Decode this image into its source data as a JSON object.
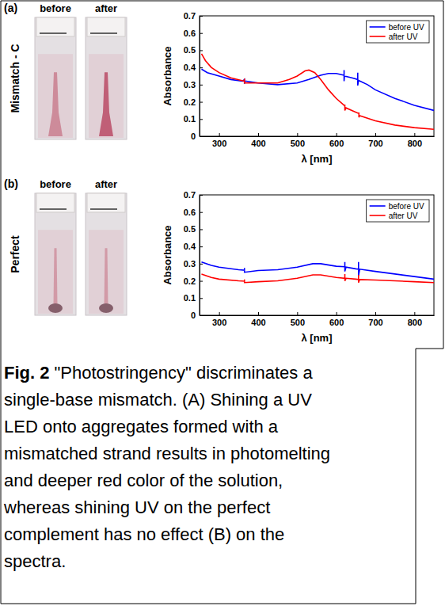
{
  "figure": {
    "panels": [
      {
        "label": "(a)",
        "photo_labels": [
          "before",
          "after"
        ],
        "sample": "Mismatch - C"
      },
      {
        "label": "(b)",
        "photo_labels": [
          "before",
          "after"
        ],
        "sample": "Perfect"
      }
    ],
    "caption": {
      "label": "Fig. 2",
      "lines": [
        "\"Photostringency\" discriminates a",
        "single-base mismatch. (A) Shining a UV",
        "LED onto aggregates formed with a",
        "mismatched strand results in photomelting",
        "and deeper red color of the solution,",
        "whereas shining UV on the perfect",
        "complement has no effect (B) on the",
        "spectra."
      ]
    }
  },
  "chart_data": [
    {
      "type": "line",
      "x_label": "λ [nm]",
      "y_label": "Absorbance",
      "xlim": [
        250,
        850
      ],
      "ylim": [
        0,
        0.7
      ],
      "xticks": [
        300,
        400,
        500,
        600,
        700,
        800
      ],
      "yticks": [
        0,
        0.1,
        0.2,
        0.3,
        0.4,
        0.5,
        0.6,
        0.7
      ],
      "legend": "upper right",
      "series": [
        {
          "name": "before UV",
          "color": "#0000ff",
          "x": [
            255,
            270,
            300,
            330,
            360,
            365,
            365,
            365,
            370,
            400,
            450,
            500,
            530,
            560,
            580,
            600,
            620,
            620,
            620,
            621,
            640,
            655,
            655,
            655,
            657,
            680,
            700,
            750,
            800,
            850
          ],
          "values": [
            0.39,
            0.37,
            0.35,
            0.33,
            0.32,
            0.33,
            0.305,
            0.32,
            0.32,
            0.31,
            0.3,
            0.31,
            0.33,
            0.355,
            0.365,
            0.365,
            0.355,
            0.385,
            0.32,
            0.35,
            0.34,
            0.33,
            0.37,
            0.295,
            0.325,
            0.3,
            0.27,
            0.22,
            0.18,
            0.15
          ]
        },
        {
          "name": "after UV",
          "color": "#ff0000",
          "x": [
            255,
            265,
            280,
            300,
            330,
            365,
            365,
            365,
            400,
            450,
            480,
            500,
            520,
            530,
            545,
            560,
            580,
            600,
            620,
            622,
            622,
            625,
            640,
            655,
            658,
            658,
            660,
            700,
            750,
            800,
            850
          ],
          "values": [
            0.48,
            0.44,
            0.4,
            0.37,
            0.34,
            0.32,
            0.335,
            0.31,
            0.31,
            0.31,
            0.33,
            0.35,
            0.38,
            0.385,
            0.37,
            0.33,
            0.27,
            0.22,
            0.18,
            0.18,
            0.15,
            0.165,
            0.15,
            0.135,
            0.135,
            0.11,
            0.12,
            0.09,
            0.065,
            0.05,
            0.04
          ]
        }
      ]
    },
    {
      "type": "line",
      "x_label": "λ [nm]",
      "y_label": "Absorbance",
      "xlim": [
        250,
        850
      ],
      "ylim": [
        0,
        0.7
      ],
      "xticks": [
        300,
        400,
        500,
        600,
        700,
        800
      ],
      "yticks": [
        0,
        0.1,
        0.2,
        0.3,
        0.4,
        0.5,
        0.6,
        0.7
      ],
      "legend": "upper right",
      "series": [
        {
          "name": "before UV",
          "color": "#0000ff",
          "x": [
            255,
            280,
            300,
            350,
            365,
            365,
            365,
            400,
            450,
            500,
            540,
            560,
            600,
            622,
            622,
            622,
            625,
            650,
            657,
            657,
            657,
            660,
            700,
            750,
            800,
            850
          ],
          "values": [
            0.31,
            0.29,
            0.28,
            0.265,
            0.262,
            0.275,
            0.25,
            0.26,
            0.265,
            0.28,
            0.3,
            0.3,
            0.285,
            0.282,
            0.31,
            0.255,
            0.28,
            0.27,
            0.268,
            0.31,
            0.23,
            0.268,
            0.255,
            0.24,
            0.225,
            0.21
          ]
        },
        {
          "name": "after UV",
          "color": "#ff0000",
          "x": [
            255,
            280,
            300,
            350,
            365,
            365,
            365,
            400,
            450,
            500,
            540,
            560,
            600,
            622,
            622,
            622,
            625,
            650,
            657,
            657,
            657,
            660,
            700,
            750,
            800,
            850
          ],
          "values": [
            0.24,
            0.22,
            0.21,
            0.2,
            0.198,
            0.208,
            0.19,
            0.195,
            0.2,
            0.215,
            0.235,
            0.235,
            0.22,
            0.215,
            0.24,
            0.2,
            0.215,
            0.21,
            0.208,
            0.235,
            0.19,
            0.208,
            0.205,
            0.2,
            0.195,
            0.19
          ]
        }
      ]
    }
  ]
}
